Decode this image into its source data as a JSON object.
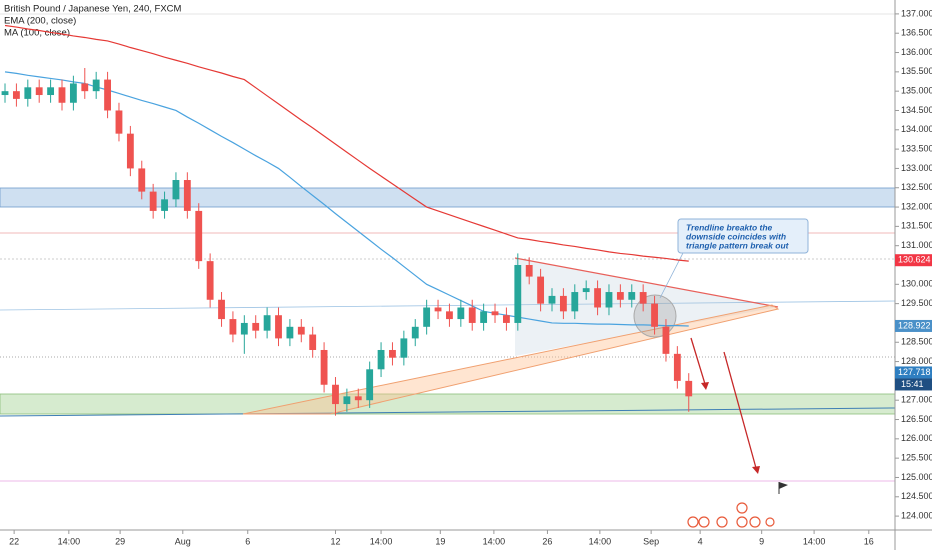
{
  "chart_data": {
    "type": "candlestick",
    "title": "British Pound / Japanese Yen, 240, FXCM",
    "indicators": [
      "EMA (200, close)",
      "MA (100, close)"
    ],
    "annotation": [
      "Trendline breakto the",
      "downside coincides with",
      "triangle pattern break out"
    ],
    "up_color": "#26a69a",
    "down_color": "#ef5350",
    "open": [
      134.9,
      135.0,
      134.8,
      135.1,
      134.9,
      135.1,
      134.7,
      135.2,
      135.0,
      135.3,
      134.5,
      133.9,
      133.0,
      132.4,
      131.9,
      132.2,
      132.7,
      131.9,
      130.6,
      129.6,
      129.1,
      128.7,
      129.0,
      128.8,
      129.2,
      128.6,
      128.9,
      128.7,
      128.3,
      127.4,
      126.9,
      127.1,
      127.0,
      127.8,
      128.3,
      128.1,
      128.6,
      128.9,
      129.4,
      129.3,
      129.1,
      129.4,
      129.0,
      129.3,
      129.2,
      129.0,
      130.5,
      130.2,
      129.5,
      129.7,
      129.3,
      129.8,
      129.9,
      129.4,
      129.8,
      129.6,
      129.8,
      129.5,
      128.9,
      128.2,
      127.5
    ],
    "high": [
      135.2,
      135.2,
      135.3,
      135.3,
      135.3,
      135.3,
      135.4,
      135.6,
      135.5,
      135.5,
      134.7,
      134.1,
      133.2,
      132.6,
      132.4,
      132.9,
      132.9,
      132.1,
      130.8,
      129.8,
      129.3,
      129.2,
      129.2,
      129.4,
      129.4,
      129.1,
      129.1,
      128.9,
      128.5,
      127.6,
      127.3,
      127.3,
      128.0,
      128.5,
      128.5,
      128.8,
      129.1,
      129.6,
      129.6,
      129.5,
      129.6,
      129.6,
      129.5,
      129.5,
      129.4,
      130.8,
      130.7,
      130.4,
      129.9,
      129.9,
      130.0,
      130.1,
      130.1,
      130.0,
      130.0,
      130.0,
      130.0,
      129.7,
      129.1,
      128.4,
      127.7
    ],
    "low": [
      134.7,
      134.6,
      134.6,
      134.7,
      134.7,
      134.5,
      134.5,
      134.8,
      134.8,
      134.3,
      133.7,
      132.8,
      132.2,
      131.7,
      131.7,
      132.0,
      131.7,
      130.4,
      129.4,
      128.9,
      128.5,
      128.2,
      128.6,
      128.6,
      128.4,
      128.4,
      128.5,
      128.1,
      127.2,
      126.6,
      126.7,
      126.8,
      126.8,
      127.6,
      127.9,
      127.9,
      128.4,
      128.7,
      129.1,
      128.9,
      128.9,
      128.8,
      128.8,
      129.0,
      128.8,
      128.8,
      130.0,
      129.3,
      129.3,
      129.1,
      129.1,
      129.6,
      129.2,
      129.2,
      129.4,
      129.4,
      129.3,
      128.7,
      128.0,
      127.3,
      126.7
    ],
    "close": [
      135.0,
      134.8,
      135.1,
      134.9,
      135.1,
      134.7,
      135.2,
      135.0,
      135.3,
      134.5,
      133.9,
      133.0,
      132.4,
      131.9,
      132.2,
      132.7,
      131.9,
      130.6,
      129.6,
      129.1,
      128.7,
      129.0,
      128.8,
      129.2,
      128.6,
      128.9,
      128.7,
      128.3,
      127.4,
      126.9,
      127.1,
      127.0,
      127.8,
      128.3,
      128.1,
      128.6,
      128.9,
      129.4,
      129.3,
      129.1,
      129.4,
      129.0,
      129.3,
      129.2,
      129.0,
      130.5,
      130.2,
      129.5,
      129.7,
      129.3,
      129.8,
      129.9,
      129.4,
      129.8,
      129.6,
      129.8,
      129.5,
      128.9,
      128.2,
      127.5,
      127.1
    ],
    "series": [
      {
        "name": "EMA (200, close)",
        "color": "#e53935",
        "values": [
          136.7,
          136.66,
          136.61,
          136.57,
          136.52,
          136.48,
          136.43,
          136.39,
          136.34,
          136.3,
          136.22,
          136.13,
          136.05,
          135.97,
          135.88,
          135.8,
          135.72,
          135.63,
          135.55,
          135.47,
          135.38,
          135.3,
          135.09,
          134.88,
          134.67,
          134.46,
          134.25,
          134.05,
          133.84,
          133.63,
          133.42,
          133.21,
          133.0,
          132.8,
          132.6,
          132.4,
          132.2,
          132.0,
          131.9,
          131.8,
          131.7,
          131.6,
          131.5,
          131.4,
          131.3,
          131.2,
          131.16,
          131.11,
          131.07,
          131.02,
          130.98,
          130.93,
          130.89,
          130.84,
          130.8,
          130.77,
          130.73,
          130.7,
          130.67,
          130.63,
          130.6
        ]
      },
      {
        "name": "MA (100, close)",
        "color": "#4aa3df",
        "values": [
          135.5,
          135.46,
          135.41,
          135.37,
          135.33,
          135.29,
          135.24,
          135.2,
          135.11,
          135.03,
          134.94,
          134.85,
          134.76,
          134.68,
          134.59,
          134.5,
          134.33,
          134.17,
          134.0,
          133.83,
          133.67,
          133.5,
          133.33,
          133.17,
          133.0,
          132.77,
          132.53,
          132.3,
          132.07,
          131.83,
          131.6,
          131.37,
          131.14,
          130.91,
          130.69,
          130.46,
          130.23,
          130.0,
          129.86,
          129.72,
          129.58,
          129.44,
          129.3,
          129.25,
          129.2,
          129.15,
          129.1,
          129.05,
          129.0,
          128.99,
          128.99,
          128.98,
          128.97,
          128.97,
          128.96,
          128.95,
          128.95,
          128.94,
          128.93,
          128.93,
          128.92
        ]
      }
    ],
    "price_markers": [
      {
        "value": 130.624,
        "color": "#f23645"
      },
      {
        "value": 128.922,
        "color": "#4a90c8"
      },
      {
        "value": 127.718,
        "color": "#2f7fc1"
      }
    ],
    "countdown": "15:41",
    "xlim": [
      -0.44,
      78.1
    ],
    "xticks": [
      {
        "value": 0.8,
        "label": "22"
      },
      {
        "value": 5.6,
        "label": "14:00"
      },
      {
        "value": 10.1,
        "label": "29"
      },
      {
        "value": 15.6,
        "label": "Aug"
      },
      {
        "value": 21.3,
        "label": "6"
      },
      {
        "value": 29,
        "label": "12"
      },
      {
        "value": 33,
        "label": "14:00"
      },
      {
        "value": 38.2,
        "label": "19"
      },
      {
        "value": 42.9,
        "label": "14:00"
      },
      {
        "value": 47.6,
        "label": "26"
      },
      {
        "value": 52.2,
        "label": "14:00"
      },
      {
        "value": 56.7,
        "label": "Sep"
      },
      {
        "value": 61,
        "label": "4"
      },
      {
        "value": 66.4,
        "label": "9"
      },
      {
        "value": 71,
        "label": "14:00"
      },
      {
        "value": 75.8,
        "label": "16"
      }
    ],
    "ylim": [
      123.64,
      137.36
    ],
    "yticks": [
      {
        "value": 124,
        "label": "124.000"
      },
      {
        "value": 124.5,
        "label": "124.500"
      },
      {
        "value": 125,
        "label": "125.000"
      },
      {
        "value": 125.5,
        "label": "125.500"
      },
      {
        "value": 126,
        "label": "126.000"
      },
      {
        "value": 126.5,
        "label": "126.500"
      },
      {
        "value": 127,
        "label": "127.000"
      },
      {
        "value": 128,
        "label": "128.000"
      },
      {
        "value": 128.5,
        "label": "128.500"
      },
      {
        "value": 129.5,
        "label": "129.500"
      },
      {
        "value": 130,
        "label": "130.000"
      },
      {
        "value": 131,
        "label": "131.000"
      },
      {
        "value": 131.5,
        "label": "131.500"
      },
      {
        "value": 132,
        "label": "132.000"
      },
      {
        "value": 132.5,
        "label": "132.500"
      },
      {
        "value": 133,
        "label": "133.000"
      },
      {
        "value": 133.5,
        "label": "133.500"
      },
      {
        "value": 134,
        "label": "134.000"
      },
      {
        "value": 134.5,
        "label": "134.500"
      },
      {
        "value": 135,
        "label": "135.000"
      },
      {
        "value": 135.5,
        "label": "135.500"
      },
      {
        "value": 136,
        "label": "136.000"
      },
      {
        "value": 136.5,
        "label": "136.500"
      },
      {
        "value": 137,
        "label": "137.000"
      }
    ]
  }
}
